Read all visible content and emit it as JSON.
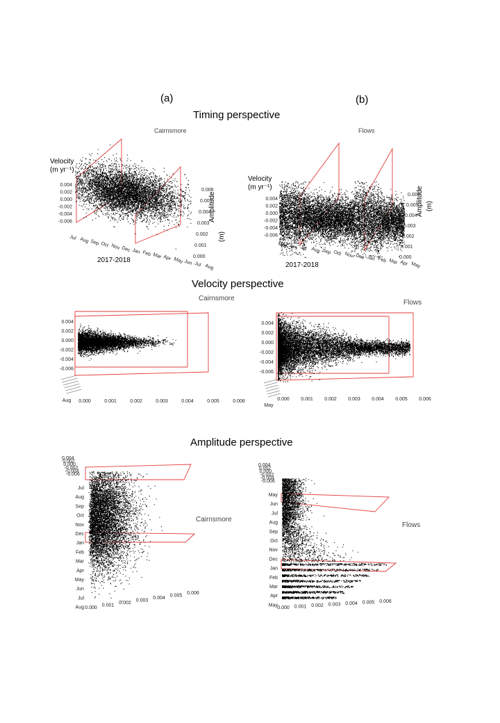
{
  "panels": {
    "a": "(a)",
    "b": "(b)"
  },
  "sections": {
    "timing": "Timing perspective",
    "velocity": "Velocity perspective",
    "amplitude": "Amplitude perspective"
  },
  "sites": {
    "a": "Cairnsmore",
    "b": "Flows"
  },
  "year_label": "2017-2018",
  "axis_titles": {
    "velocity_line1": "Velocity",
    "velocity_line2": "(m yr⁻¹)",
    "amplitude_line1": "Amplitude",
    "amplitude_line2": "(m)"
  },
  "ticks": {
    "velocity": [
      "0.004",
      "0.002",
      "0.000",
      "-0.002",
      "-0.004",
      "-0.006"
    ],
    "velocity_b_velpersp": [
      "0.004",
      "0.002",
      "0.000",
      "-0.002",
      "-0.004",
      "-0.006"
    ],
    "velocity_a_velpersp": [
      "0.004",
      "0.002",
      "0.000",
      "-0.002",
      "-0.004",
      "-0.006"
    ],
    "amplitude": [
      "0.000",
      "0.001",
      "0.002",
      "0.003",
      "0.004",
      "0.005",
      "0.006"
    ],
    "months_a": [
      "Jul",
      "Aug",
      "Sep",
      "Oct",
      "Nov",
      "Dec",
      "Jan",
      "Feb",
      "Mar",
      "Apr",
      "May",
      "Jun",
      "Jul",
      "Aug"
    ],
    "months_b": [
      "May",
      "Jun",
      "Jul",
      "Aug",
      "Sep",
      "Oct",
      "Nov",
      "Dec",
      "Jan",
      "Feb",
      "Mar",
      "Apr",
      "May"
    ]
  },
  "chart_data": [
    {
      "type": "scatter",
      "panel": "a",
      "view": "timing",
      "title": "Cairnsmore",
      "x_axis": "time",
      "x_ticks": [
        "Jul",
        "Aug",
        "Sep",
        "Oct",
        "Nov",
        "Dec",
        "Jan",
        "Feb",
        "Mar",
        "Apr",
        "May",
        "Jun",
        "Jul",
        "Aug"
      ],
      "y_axis": "velocity (m yr-1)",
      "ylim": [
        -0.006,
        0.004
      ],
      "z_axis": "amplitude (m)",
      "zlim": [
        0.0,
        0.006
      ],
      "point_cloud": {
        "velocity_center": -0.001,
        "velocity_spread": 0.0012,
        "time_peak": [
          "Oct",
          "Jan"
        ]
      },
      "red_planes_at": [
        "Jul",
        "Jan"
      ]
    },
    {
      "type": "scatter",
      "panel": "b",
      "view": "timing",
      "title": "Flows",
      "x_axis": "time",
      "x_ticks": [
        "May",
        "Jun",
        "Jul",
        "Aug",
        "Sep",
        "Oct",
        "Nov",
        "Dec",
        "Jan",
        "Feb",
        "Mar",
        "Apr",
        "May"
      ],
      "y_axis": "velocity (m yr-1)",
      "ylim": [
        -0.006,
        0.004
      ],
      "z_axis": "amplitude (m)",
      "zlim": [
        0.0,
        0.006
      ],
      "point_cloud": {
        "velocity_center": -0.001,
        "velocity_spread": 0.0025,
        "time_peak": [
          "May",
          "Jan"
        ]
      },
      "red_planes_at": [
        "Jul",
        "Feb"
      ]
    },
    {
      "type": "scatter",
      "panel": "a",
      "view": "velocity",
      "title": "Cairnsmore",
      "x_axis": "amplitude (m)",
      "xlim": [
        0.0,
        0.006
      ],
      "y_axis": "velocity (m yr-1)",
      "ylim": [
        -0.006,
        0.004
      ],
      "point_cloud": {
        "amplitude_range": [
          0.0,
          0.0025
        ],
        "velocity_center": -0.001,
        "velocity_spread": 0.0012
      }
    },
    {
      "type": "scatter",
      "panel": "b",
      "view": "velocity",
      "title": "Flows",
      "x_axis": "amplitude (m)",
      "xlim": [
        0.0,
        0.006
      ],
      "y_axis": "velocity (m yr-1)",
      "ylim": [
        -0.006,
        0.004
      ],
      "point_cloud": {
        "amplitude_range": [
          0.0,
          0.005
        ],
        "velocity_center": -0.001,
        "velocity_spread": 0.003
      }
    },
    {
      "type": "scatter",
      "panel": "a",
      "view": "amplitude",
      "title": "Cairnsmore",
      "x_axis": "amplitude (m)",
      "xlim": [
        0.0,
        0.006
      ],
      "y_axis": "time",
      "y_ticks": [
        "Jul",
        "Aug",
        "Sep",
        "Oct",
        "Nov",
        "Dec",
        "Jan",
        "Feb",
        "Mar",
        "Apr",
        "May",
        "Jun",
        "Jul",
        "Aug"
      ],
      "point_cloud": {
        "amplitude_peak": 0.001,
        "time_peak": [
          "Oct",
          "Dec"
        ]
      }
    },
    {
      "type": "scatter",
      "panel": "b",
      "view": "amplitude",
      "title": "Flows",
      "x_axis": "amplitude (m)",
      "xlim": [
        0.0,
        0.006
      ],
      "y_axis": "time",
      "y_ticks": [
        "May",
        "Jun",
        "Jul",
        "Aug",
        "Sep",
        "Oct",
        "Nov",
        "Dec",
        "Jan",
        "Feb",
        "Mar",
        "Apr",
        "May"
      ],
      "point_cloud": {
        "amplitude_peak": 0.0005,
        "time_peak": [
          "May",
          "Jun"
        ]
      }
    }
  ]
}
